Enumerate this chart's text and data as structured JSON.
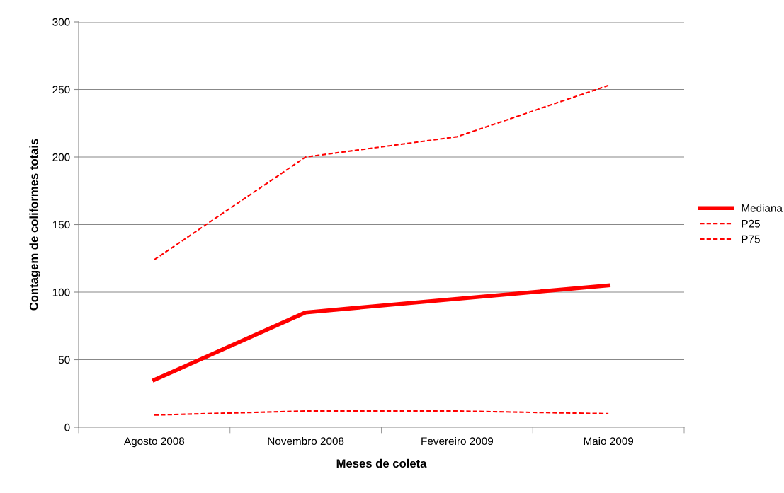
{
  "chart_data": {
    "type": "line",
    "xlabel": "Meses de coleta",
    "ylabel": "Contagem de coliformes totais",
    "categories": [
      "Agosto 2008",
      "Novembro 2008",
      "Fevereiro 2009",
      "Maio 2009"
    ],
    "series": [
      {
        "name": "Mediana",
        "color": "#ff0000",
        "line_style": "solid",
        "values": [
          35,
          85,
          95,
          105
        ]
      },
      {
        "name": "P25",
        "color": "#ff0000",
        "line_style": "dashed",
        "values": [
          9,
          12,
          12,
          10
        ]
      },
      {
        "name": "P75",
        "color": "#ff0000",
        "line_style": "dashed",
        "values": [
          124,
          200,
          215,
          253
        ]
      }
    ],
    "ylim": [
      0,
      300
    ],
    "yticks": [
      0,
      50,
      100,
      150,
      200,
      250,
      300
    ],
    "grid": "y",
    "legend": "right",
    "marker": "none"
  }
}
